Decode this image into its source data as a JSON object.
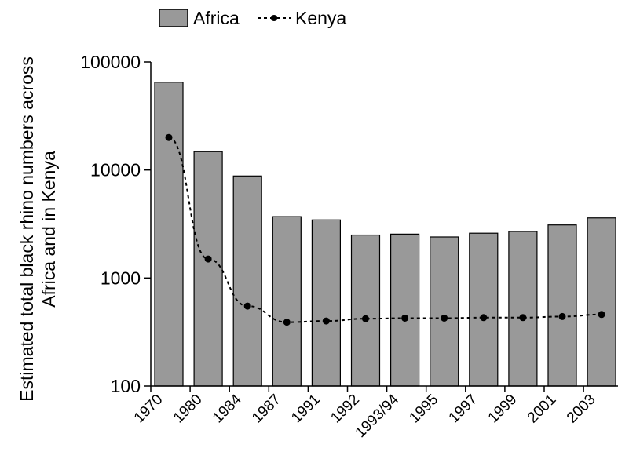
{
  "chart_data": {
    "type": "bar",
    "ylabel_lines": [
      "Estimated total black rhino numbers across",
      "Africa and in Kenya"
    ],
    "yscale": "log",
    "ylim": [
      100,
      100000
    ],
    "yticks": [
      100,
      1000,
      10000,
      100000
    ],
    "ytick_labels": [
      "100",
      "1000",
      "10000",
      "100000"
    ],
    "grid": false,
    "legend_position": "top",
    "categories": [
      "1970",
      "1980",
      "1984",
      "1987",
      "1991",
      "1992",
      "1993/94",
      "1995",
      "1997",
      "1999",
      "2001",
      "2003"
    ],
    "series": [
      {
        "name": "Africa",
        "type": "bar",
        "color": "#999999",
        "values": [
          65000,
          14800,
          8800,
          3700,
          3450,
          2500,
          2550,
          2400,
          2600,
          2700,
          3100,
          3600
        ]
      },
      {
        "name": "Kenya",
        "type": "line",
        "style": "dashed-with-markers",
        "color": "#000000",
        "values": [
          20000,
          1500,
          550,
          390,
          400,
          420,
          425,
          425,
          430,
          430,
          440,
          460
        ]
      }
    ]
  }
}
